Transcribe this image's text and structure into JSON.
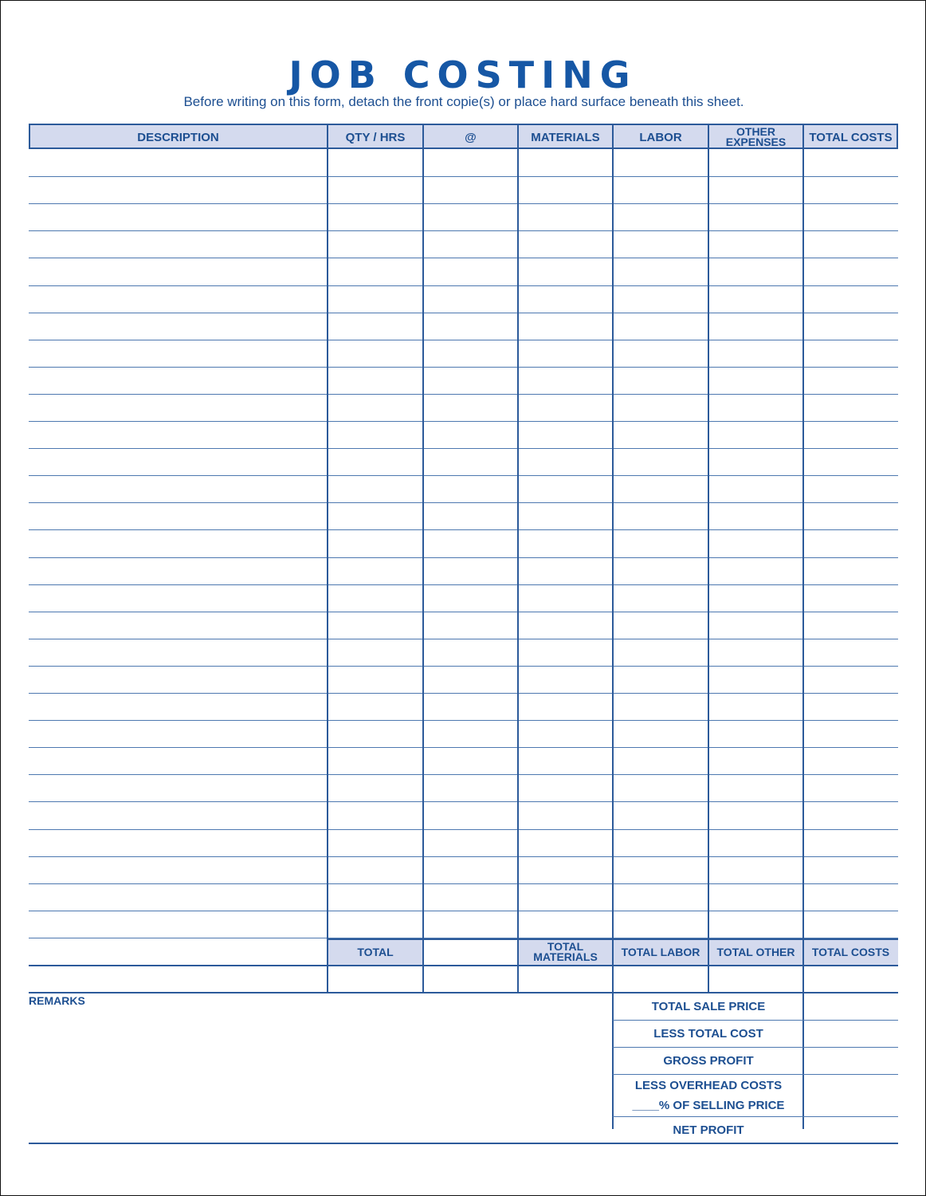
{
  "title": "JOB COSTING",
  "subtitle": "Before writing on this form, detach the front copie(s) or place hard surface beneath this sheet.",
  "columns": [
    "DESCRIPTION",
    "QTY / HRS",
    "@",
    "MATERIALS",
    "LABOR",
    "OTHER EXPENSES",
    "TOTAL COSTS"
  ],
  "totals_row": [
    "",
    "TOTAL",
    "",
    "TOTAL MATERIALS",
    "TOTAL LABOR",
    "TOTAL OTHER",
    "TOTAL COSTS"
  ],
  "remarks_label": "REMARKS",
  "summary": {
    "total_sale_price": "TOTAL SALE PRICE",
    "less_total_cost": "LESS TOTAL COST",
    "gross_profit": "GROSS PROFIT",
    "less_overhead": "LESS OVERHEAD COSTS",
    "percent_selling": "____% OF SELLING PRICE",
    "net_profit": "NET PROFIT"
  },
  "colors": {
    "ink": "#1d4f91",
    "header_fill": "#d4daee"
  }
}
